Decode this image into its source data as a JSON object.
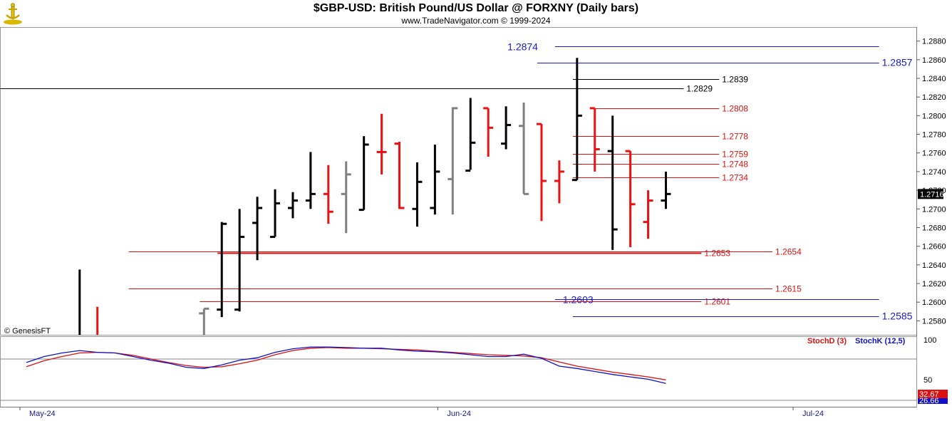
{
  "header": {
    "title": "$GBP-USD:  British Pound/US Dollar @ FORXNY  (Daily bars)",
    "subtitle": "www.TradeNavigator.com © 1999-2024"
  },
  "watermark": "© GenesisFT",
  "colors": {
    "up": "#000000",
    "down": "#ee1111",
    "neutral": "#808080",
    "stochD": "#dd1111",
    "stochK": "#1111cc",
    "levelBlue": "#1a1acc",
    "levelRed": "#dd1111",
    "levelBlack": "#000000"
  },
  "chart_data": [
    {
      "type": "ohlc",
      "price_range": [
        1.2565,
        1.2895
      ],
      "y_ticks": [
        "1.2880",
        "1.2860",
        "1.2840",
        "1.2820",
        "1.2800",
        "1.2780",
        "1.2760",
        "1.2740",
        "1.2720",
        "1.2700",
        "1.2680",
        "1.2660",
        "1.2640",
        "1.2620",
        "1.2600",
        "1.2580"
      ],
      "last_price_label": "1.2716",
      "x_labels": [
        {
          "label": "May-24",
          "bar": 0
        },
        {
          "label": "Jun-24",
          "bar": 23
        },
        {
          "label": "Jul-24",
          "bar": 43
        }
      ],
      "bars": [
        {
          "i": 3,
          "o": null,
          "h": 1.2635,
          "l": 1.2565,
          "c": null,
          "color": "up"
        },
        {
          "i": 4,
          "o": null,
          "h": 1.2595,
          "l": 1.2565,
          "c": null,
          "color": "down"
        },
        {
          "i": 10,
          "o": 1.2588,
          "h": 1.2593,
          "l": 1.2565,
          "c": 1.2593,
          "color": "neutral"
        },
        {
          "i": 11,
          "o": 1.2592,
          "h": 1.2686,
          "l": 1.2584,
          "c": 1.2684,
          "color": "up"
        },
        {
          "i": 12,
          "o": 1.2592,
          "h": 1.27,
          "l": 1.259,
          "c": 1.267,
          "color": "up"
        },
        {
          "i": 13,
          "o": 1.2685,
          "h": 1.2713,
          "l": 1.2645,
          "c": 1.2701,
          "color": "up"
        },
        {
          "i": 14,
          "o": 1.267,
          "h": 1.2721,
          "l": 1.267,
          "c": 1.2706,
          "color": "up"
        },
        {
          "i": 15,
          "o": 1.2701,
          "h": 1.2718,
          "l": 1.269,
          "c": 1.2709,
          "color": "up"
        },
        {
          "i": 16,
          "o": 1.2709,
          "h": 1.2761,
          "l": 1.27,
          "c": 1.2716,
          "color": "up"
        },
        {
          "i": 17,
          "o": 1.2716,
          "h": 1.2747,
          "l": 1.2684,
          "c": 1.2697,
          "color": "down"
        },
        {
          "i": 18,
          "o": 1.2716,
          "h": 1.2751,
          "l": 1.2674,
          "c": 1.2737,
          "color": "neutral"
        },
        {
          "i": 19,
          "o": 1.2699,
          "h": 1.2778,
          "l": 1.2699,
          "c": 1.2769,
          "color": "up"
        },
        {
          "i": 20,
          "o": 1.2761,
          "h": 1.2802,
          "l": 1.2737,
          "c": 1.2761,
          "color": "down"
        },
        {
          "i": 21,
          "o": 1.277,
          "h": 1.2772,
          "l": 1.27,
          "c": 1.2701,
          "color": "down"
        },
        {
          "i": 22,
          "o": 1.27,
          "h": 1.275,
          "l": 1.2681,
          "c": 1.2729,
          "color": "up"
        },
        {
          "i": 23,
          "o": 1.2701,
          "h": 1.2769,
          "l": 1.2694,
          "c": 1.274,
          "color": "up"
        },
        {
          "i": 24,
          "o": 1.2732,
          "h": 1.2809,
          "l": 1.2694,
          "c": 1.2808,
          "color": "neutral"
        },
        {
          "i": 25,
          "o": 1.2741,
          "h": 1.2819,
          "l": 1.2742,
          "c": 1.2771,
          "color": "up"
        },
        {
          "i": 26,
          "o": 1.2808,
          "h": 1.2808,
          "l": 1.2756,
          "c": 1.2787,
          "color": "down"
        },
        {
          "i": 27,
          "o": 1.277,
          "h": 1.281,
          "l": 1.2764,
          "c": 1.279,
          "color": "up"
        },
        {
          "i": 28,
          "o": 1.2789,
          "h": 1.2814,
          "l": 1.2716,
          "c": 1.2716,
          "color": "neutral"
        },
        {
          "i": 29,
          "o": 1.2791,
          "h": 1.2791,
          "l": 1.2687,
          "c": 1.273,
          "color": "down"
        },
        {
          "i": 30,
          "o": 1.273,
          "h": 1.2752,
          "l": 1.2706,
          "c": 1.274,
          "color": "down"
        },
        {
          "i": 31,
          "o": 1.2731,
          "h": 1.2862,
          "l": 1.2731,
          "c": 1.28,
          "color": "up"
        },
        {
          "i": 32,
          "o": 1.2808,
          "h": 1.2808,
          "l": 1.274,
          "c": 1.2764,
          "color": "down"
        },
        {
          "i": 33,
          "o": 1.2762,
          "h": 1.28,
          "l": 1.2656,
          "c": 1.2678,
          "color": "up"
        },
        {
          "i": 34,
          "o": 1.2762,
          "h": 1.2762,
          "l": 1.2659,
          "c": 1.2705,
          "color": "down"
        },
        {
          "i": 35,
          "o": 1.2686,
          "h": 1.272,
          "l": 1.2668,
          "c": 1.2709,
          "color": "down"
        },
        {
          "i": 36,
          "o": 1.2709,
          "h": 1.274,
          "l": 1.27,
          "c": 1.2716,
          "color": "up"
        }
      ],
      "levels": [
        {
          "label": "1.2874",
          "color": "blue",
          "big": true,
          "startBar": 30,
          "endBar": 48,
          "labelBar": 29,
          "labelSide": "left"
        },
        {
          "label": "1.2857",
          "color": "blue",
          "big": true,
          "startBar": 29,
          "endBar": 48,
          "labelBar": 48,
          "labelSide": "right"
        },
        {
          "label": "1.2839",
          "color": "black",
          "startBar": 31,
          "endBar": 39,
          "labelBar": 39,
          "labelSide": "right"
        },
        {
          "label": "1.2829",
          "color": "black",
          "startBar": -3,
          "endBar": 37,
          "labelBar": 37,
          "labelSide": "right"
        },
        {
          "label": "1.2808",
          "color": "red",
          "startBar": 32,
          "endBar": 39,
          "labelBar": 39,
          "labelSide": "right"
        },
        {
          "label": "1.2778",
          "color": "red",
          "startBar": 31,
          "endBar": 39,
          "labelBar": 39,
          "labelSide": "right"
        },
        {
          "label": "1.2759",
          "color": "red",
          "startBar": 31,
          "endBar": 39,
          "labelBar": 39,
          "labelSide": "right"
        },
        {
          "label": "1.2748",
          "color": "red",
          "startBar": 31,
          "endBar": 39,
          "labelBar": 39,
          "labelSide": "right"
        },
        {
          "label": "1.2734",
          "color": "red",
          "startBar": 31,
          "endBar": 39,
          "labelBar": 39,
          "labelSide": "right"
        },
        {
          "label": "1.2654",
          "color": "red",
          "startBar": 6,
          "endBar": 42,
          "labelBar": 42,
          "labelSide": "right"
        },
        {
          "label": "1.2653",
          "color": "red",
          "startBar": 11,
          "endBar": 38,
          "labelBar": 38,
          "labelSide": "right",
          "thick": true
        },
        {
          "label": "1.2615",
          "color": "red",
          "startBar": 6,
          "endBar": 42,
          "labelBar": 42,
          "labelSide": "right"
        },
        {
          "label": "1.2603",
          "color": "blue",
          "big": true,
          "startBar": 30,
          "endBar": 48,
          "labelBar": 31,
          "labelSide": "center"
        },
        {
          "label": "1.2601",
          "color": "red",
          "startBar": 10,
          "endBar": 38,
          "labelBar": 38,
          "labelSide": "right"
        },
        {
          "label": "1.2585",
          "color": "blue",
          "big": true,
          "startBar": 31,
          "endBar": 48,
          "labelBar": 48,
          "labelSide": "right"
        }
      ]
    },
    {
      "type": "line",
      "indicator": "stochastic",
      "ylim": [
        0,
        100
      ],
      "y_ticks": [
        "100",
        "50"
      ],
      "guide_levels": [
        80,
        20
      ],
      "last_values": {
        "stochD": "32.67",
        "stochK": "26.66"
      },
      "series": [
        {
          "name": "StochD (3)",
          "color": "stochD",
          "x": [
            0,
            1,
            2,
            3,
            4,
            5,
            6,
            7,
            8,
            9,
            10,
            11,
            12,
            13,
            14,
            15,
            16,
            17,
            18,
            19,
            20,
            21,
            22,
            23,
            24,
            25,
            26,
            27,
            28,
            29,
            30,
            31,
            32,
            33,
            34,
            35,
            36
          ],
          "values": [
            55,
            65,
            72,
            78,
            79,
            78,
            74,
            68,
            62,
            57,
            54,
            55,
            60,
            66,
            75,
            82,
            86,
            87,
            86,
            86,
            85,
            84,
            83,
            81,
            79,
            77,
            75,
            74,
            73,
            70,
            63,
            56,
            51,
            46,
            42,
            38,
            33
          ]
        },
        {
          "name": "StochK (12,5)",
          "color": "stochK",
          "x": [
            0,
            1,
            2,
            3,
            4,
            5,
            6,
            7,
            8,
            9,
            10,
            11,
            12,
            13,
            14,
            15,
            16,
            17,
            18,
            19,
            20,
            21,
            22,
            23,
            24,
            25,
            26,
            27,
            28,
            29,
            30,
            31,
            32,
            33,
            34,
            35,
            36
          ],
          "values": [
            62,
            72,
            78,
            82,
            79,
            78,
            72,
            66,
            61,
            54,
            52,
            58,
            66,
            70,
            79,
            85,
            88,
            88,
            87,
            86,
            86,
            83,
            81,
            80,
            78,
            75,
            72,
            72,
            76,
            69,
            56,
            52,
            47,
            42,
            38,
            34,
            27
          ]
        }
      ]
    }
  ]
}
